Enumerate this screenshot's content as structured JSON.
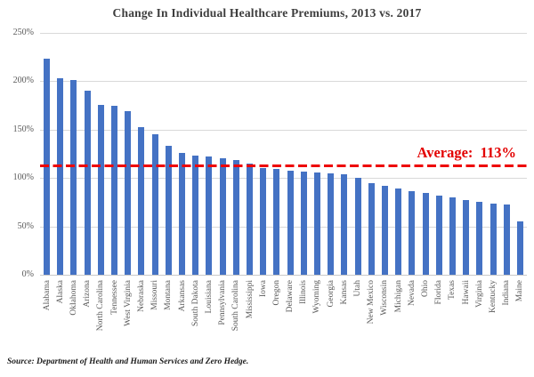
{
  "title": "Change In Individual Healthcare Premiums, 2013 vs. 2017",
  "annotations": {
    "average_label": "Average:  113%"
  },
  "source_note": "Source: Department of Health and Human Services and Zero Hedge.",
  "colors": {
    "bar": "#4472C4",
    "average_line": "#EE0000",
    "average_text": "#E30000",
    "gridline": "#D9D9D9",
    "axis_line": "#C9C9C9",
    "tick_text": "#595959",
    "title_text": "#3D3D3D",
    "background": "#FFFFFF"
  },
  "chart_data": {
    "type": "bar",
    "title": "Change In Individual Healthcare Premiums, 2013 vs. 2017",
    "xlabel": "",
    "ylabel": "",
    "ylim": [
      0,
      250
    ],
    "ytick_labels": [
      "0%",
      "50%",
      "100%",
      "150%",
      "200%",
      "250%"
    ],
    "grid": true,
    "legend": false,
    "average_line_value": 113,
    "categories": [
      "Alabama",
      "Alaska",
      "Oklahoma",
      "Arizona",
      "North Carolina",
      "Tennessee",
      "West Virginia",
      "Nebraska",
      "Missouri",
      "Montana",
      "Arkansas",
      "South Dakota",
      "Louisiana",
      "Pennsylvania",
      "South Carolina",
      "Mississippi",
      "Iowa",
      "Oregon",
      "Delaware",
      "Illinois",
      "Wyoming",
      "Georgia",
      "Kansas",
      "Utah",
      "New Mexico",
      "Wisconsin",
      "Michigan",
      "Nevada",
      "Ohio",
      "Florida",
      "Texas",
      "Hawaii",
      "Virginia",
      "Kentucky",
      "Indiana",
      "Maine"
    ],
    "values": [
      223,
      203,
      201,
      190,
      176,
      175,
      169,
      153,
      145,
      133,
      126,
      123,
      122,
      120,
      119,
      115,
      110,
      109,
      108,
      107,
      106,
      105,
      104,
      100,
      95,
      92,
      89,
      86,
      85,
      82,
      80,
      77,
      75,
      74,
      73,
      55
    ]
  }
}
